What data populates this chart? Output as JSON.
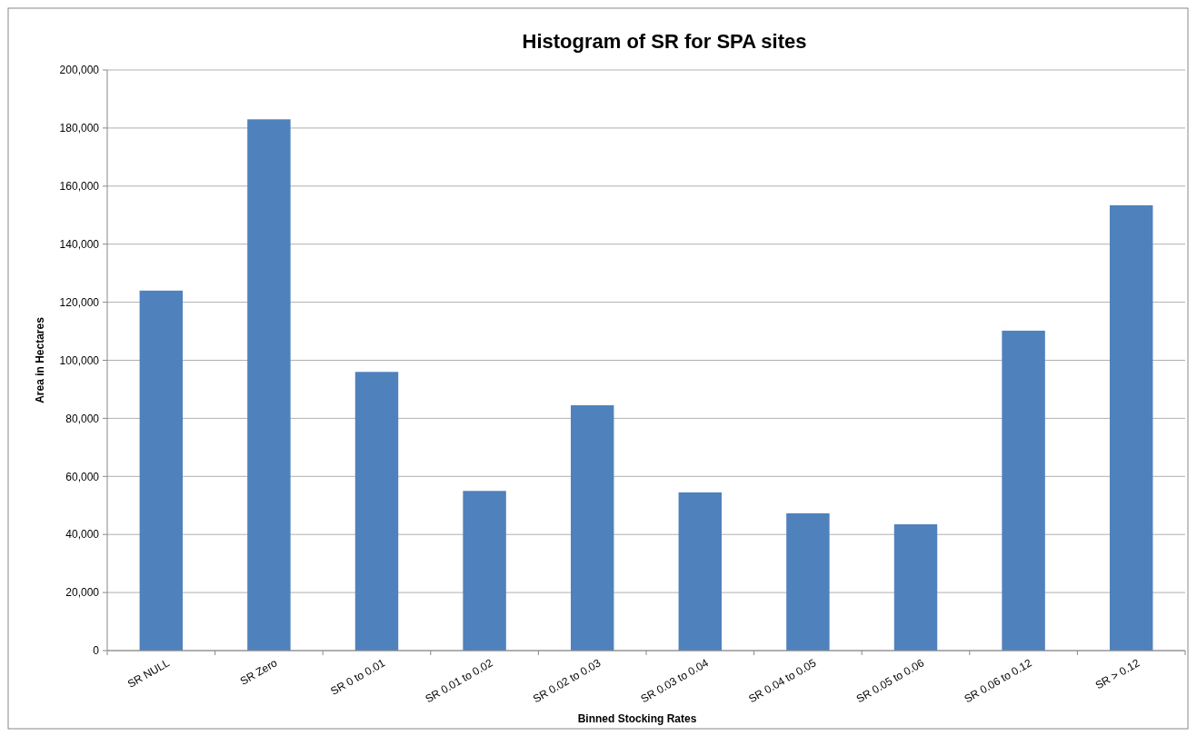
{
  "chart_data": {
    "type": "bar",
    "title": "Histogram of SR for SPA sites",
    "xlabel": "Binned Stocking Rates",
    "ylabel": "Area in Hectares",
    "categories": [
      "SR NULL",
      "SR Zero",
      "SR 0 to 0.01",
      "SR 0.01 to 0.02",
      "SR 0.02 to 0.03",
      "SR 0.03 to 0.04",
      "SR 0.04 to 0.05",
      "SR 0.05 to 0.06",
      "SR 0.06 to 0.12",
      "SR > 0.12"
    ],
    "values": [
      124000,
      183000,
      96000,
      55000,
      84500,
      54500,
      47300,
      43500,
      110200,
      153400
    ],
    "color": "#4f81bd",
    "ylim": [
      0,
      200000
    ],
    "yticks": [
      {
        "value": 0,
        "label": "0"
      },
      {
        "value": 20000,
        "label": "20,000"
      },
      {
        "value": 40000,
        "label": "40,000"
      },
      {
        "value": 60000,
        "label": "60,000"
      },
      {
        "value": 80000,
        "label": "80,000"
      },
      {
        "value": 100000,
        "label": "100,000"
      },
      {
        "value": 120000,
        "label": "120,000"
      },
      {
        "value": 140000,
        "label": "140,000"
      },
      {
        "value": 160000,
        "label": "160,000"
      },
      {
        "value": 180000,
        "label": "180,000"
      },
      {
        "value": 200000,
        "label": "200,000"
      }
    ],
    "grid": "y"
  }
}
